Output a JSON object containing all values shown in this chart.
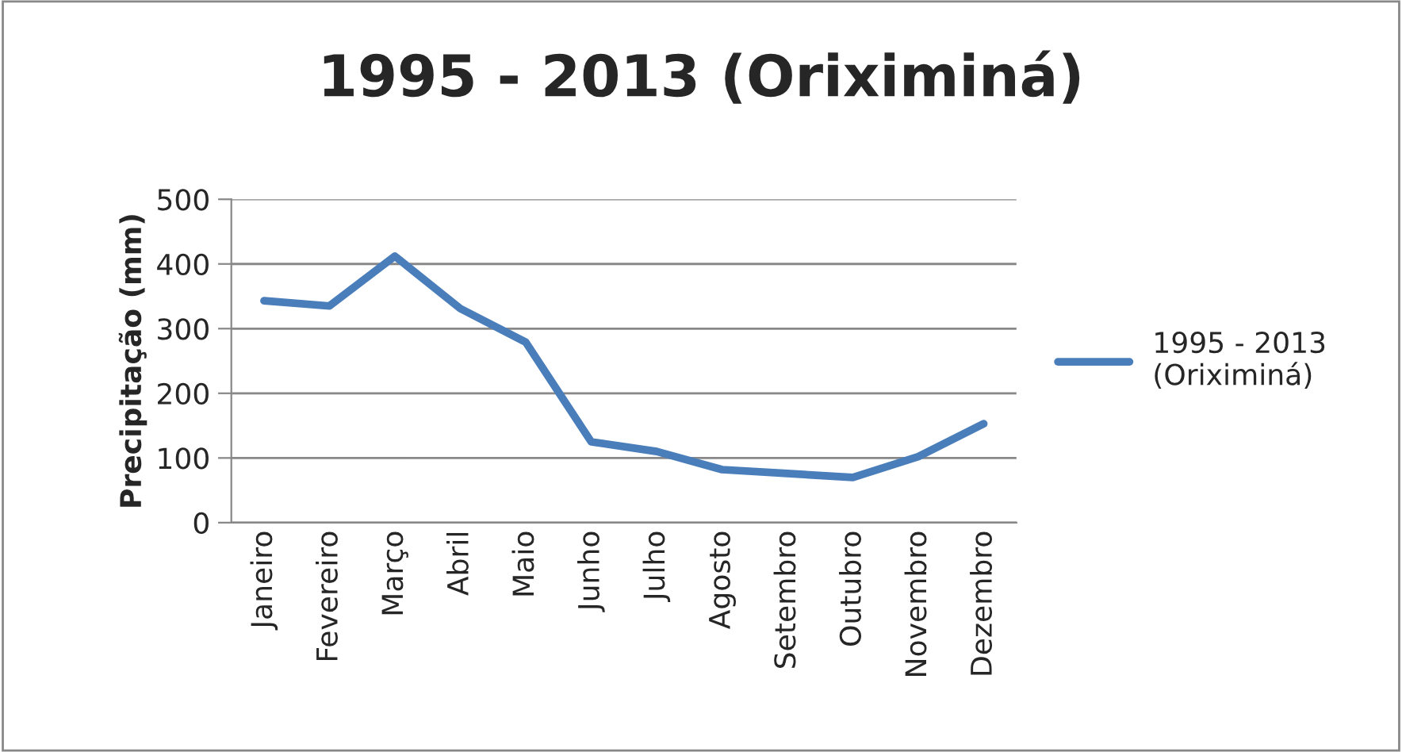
{
  "chart_data": {
    "type": "line",
    "title": "1995 - 2013 (Oriximiná)",
    "ylabel": "Precipitação (mm)",
    "categories": [
      "Janeiro",
      "Fevereiro",
      "Março",
      "Abril",
      "Maio",
      "Junho",
      "Julho",
      "Agosto",
      "Setembro",
      "Outubro",
      "Novembro",
      "Dezembro"
    ],
    "series": [
      {
        "name": "1995 - 2013\n(Oriximiná)",
        "color": "#4a7ebb",
        "values": [
          343,
          335,
          412,
          331,
          279,
          125,
          110,
          82,
          76,
          70,
          102,
          153
        ]
      }
    ],
    "ylim": [
      0,
      500
    ],
    "yticks": [
      0,
      100,
      200,
      300,
      400,
      500
    ],
    "grid": "y",
    "legend": "right",
    "marker": "none",
    "line_style": "solid"
  }
}
